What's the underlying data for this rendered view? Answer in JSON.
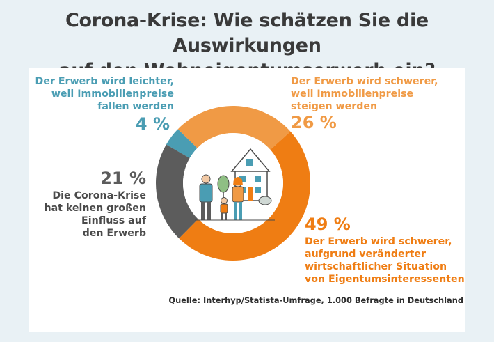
{
  "title_line1": "Corona-Krise: Wie schätzen Sie die Auswirkungen",
  "title_line2": "auf den Wohneigentumserwerb ein?",
  "source": "Quelle: Interhyp/Statista-Umfrage, 1.000 Befragte in Deutschland",
  "colors": {
    "teal": "#4a9db3",
    "light_orange": "#f09a45",
    "orange": "#ef7d13",
    "gray": "#5c5c5c"
  },
  "chart_data": {
    "type": "pie",
    "donut": true,
    "slices": [
      {
        "value": 4,
        "pct_label": "4 %",
        "color": "#4a9db3",
        "lines": [
          "Der Erwerb wird leichter,",
          "weil Immobilienpreise",
          "fallen werden"
        ]
      },
      {
        "value": 26,
        "pct_label": "26 %",
        "color": "#f09a45",
        "lines": [
          "Der Erwerb wird schwerer,",
          "weil Immobilienpreise",
          "steigen werden"
        ]
      },
      {
        "value": 49,
        "pct_label": "49 %",
        "color": "#ef7d13",
        "lines": [
          "Der Erwerb wird schwerer,",
          "aufgrund veränderter",
          "wirtschaftlicher Situation",
          "von Eigentumsinteressenten"
        ]
      },
      {
        "value": 21,
        "pct_label": "21 %",
        "color": "#5c5c5c",
        "lines": [
          "Die Corona-Krise",
          "hat keinen großen",
          "Einfluss auf",
          "den Erwerb"
        ]
      }
    ]
  }
}
